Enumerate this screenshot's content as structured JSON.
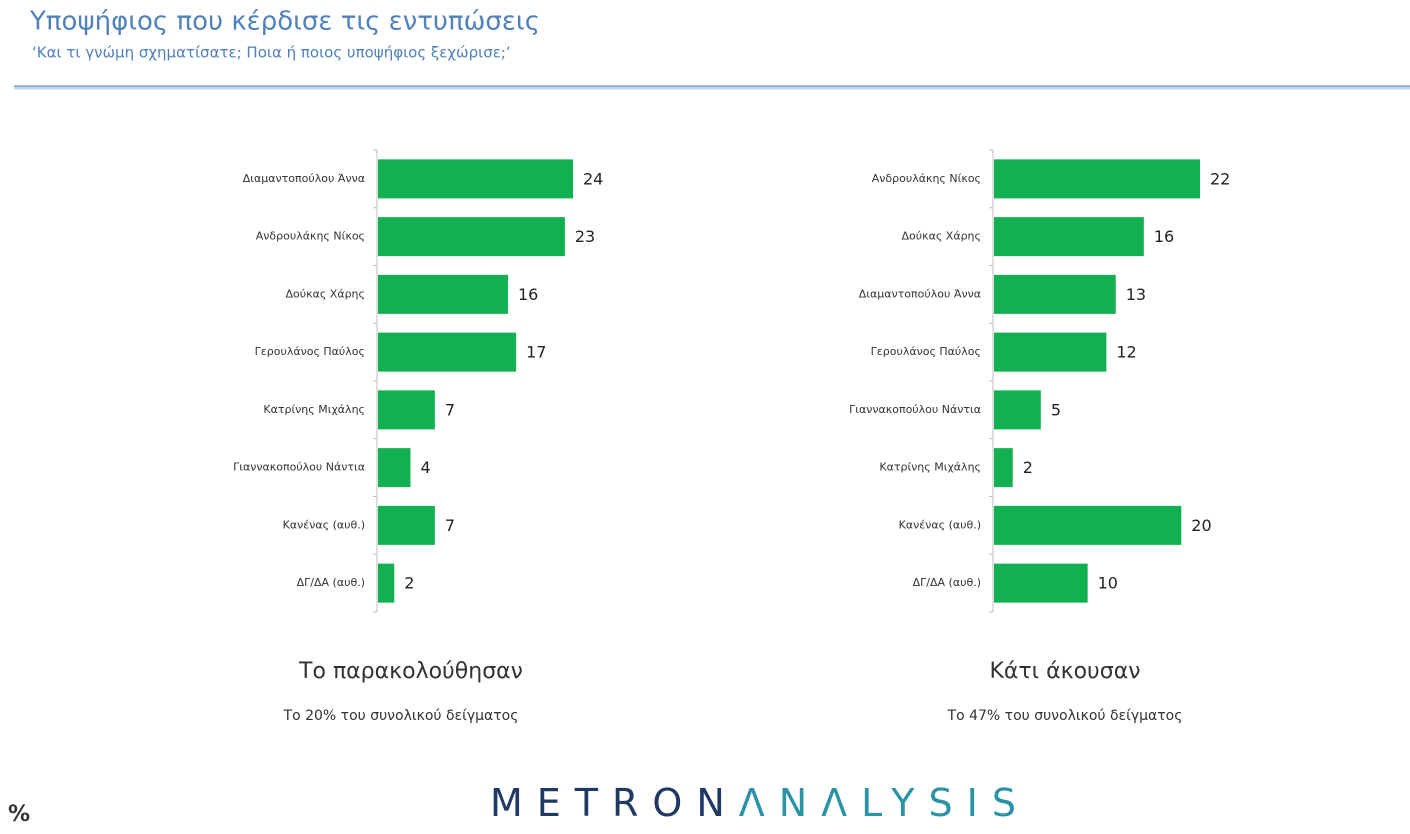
{
  "title": "Υποψήφιος που κέρδισε τις εντυπώσεις",
  "subtitle": "‘Και τι γνώμη σχηματίσατε; Ποια ή ποιος υποψήφιος ξεχώρισε;’",
  "footer": "%",
  "logo": {
    "part1": "METRON",
    "part2": "ΛNΛLYSIS"
  },
  "chart_data": [
    {
      "type": "bar",
      "orientation": "horizontal",
      "title": "Το παρακολούθησαν",
      "subtitle": "Το 20% του συνολικού δείγματος",
      "categories": [
        "Διαμαντοπούλου Άννα",
        "Ανδρουλάκης Νίκος",
        "Δούκας Χάρης",
        "Γερουλάνος Παύλος",
        "Κατρίνης Μιχάλης",
        "Γιαννακοπούλου Νάντια",
        "Κανένας (αυθ.)",
        "ΔΓ/ΔΑ (αυθ.)"
      ],
      "values": [
        24,
        23,
        16,
        17,
        7,
        4,
        7,
        2
      ],
      "color": "#12b050"
    },
    {
      "type": "bar",
      "orientation": "horizontal",
      "title": "Κάτι άκουσαν",
      "subtitle": "Το 47% του συνολικού δείγματος",
      "categories": [
        "Ανδρουλάκης Νίκος",
        "Δούκας Χάρης",
        "Διαμαντοπούλου Άννα",
        "Γερουλάνος Παύλος",
        "Γιαννακοπούλου Νάντια",
        "Κατρίνης Μιχάλης",
        "Κανένας (αυθ.)",
        "ΔΓ/ΔΑ (αυθ.)"
      ],
      "values": [
        22,
        16,
        13,
        12,
        5,
        2,
        20,
        10
      ],
      "color": "#12b050"
    }
  ]
}
